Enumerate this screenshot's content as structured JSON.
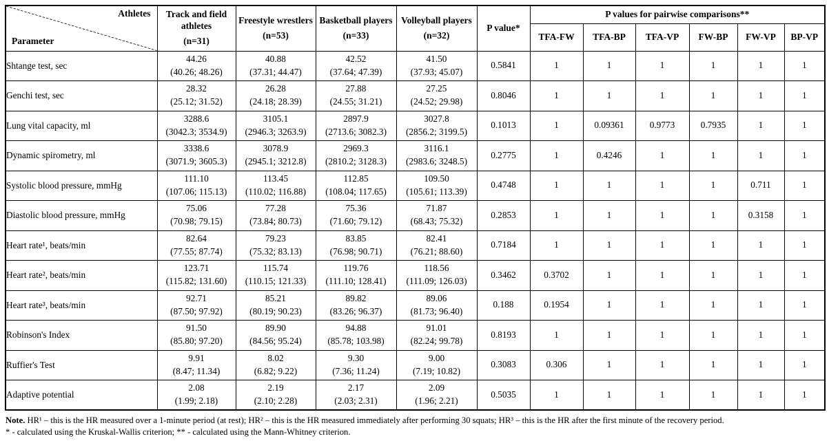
{
  "table": {
    "corner": {
      "top_label": "Athletes",
      "bottom_label": "Parameter"
    },
    "columns": [
      {
        "name": "Track and field athletes",
        "n": "(n=31)"
      },
      {
        "name": "Freestyle wrestlers",
        "n": "(n=53)"
      },
      {
        "name": "Basketball players",
        "n": "(n=33)"
      },
      {
        "name": "Volleyball players",
        "n": "(n=32)"
      }
    ],
    "p_value_header": "P value*",
    "pairwise_group_header": "P values for pairwise comparisons**",
    "pairwise_columns": [
      "TFA-FW",
      "TFA-BP",
      "TFA-VP",
      "FW-BP",
      "FW-VP",
      "BP-VP"
    ],
    "rows": [
      {
        "parameter": "Shtange test, sec",
        "cells": [
          {
            "mean": "44.26",
            "ci": "(40.26; 48.26)"
          },
          {
            "mean": "40.88",
            "ci": "(37.31; 44.47)"
          },
          {
            "mean": "42.52",
            "ci": "(37.64; 47.39)"
          },
          {
            "mean": "41.50",
            "ci": "(37.93; 45.07)"
          }
        ],
        "p": "0.5841",
        "pairwise": [
          "1",
          "1",
          "1",
          "1",
          "1",
          "1"
        ]
      },
      {
        "parameter": "Genchi test, sec",
        "cells": [
          {
            "mean": "28.32",
            "ci": "(25.12; 31.52)"
          },
          {
            "mean": "26.28",
            "ci": "(24.18; 28.39)"
          },
          {
            "mean": "27.88",
            "ci": "(24.55; 31.21)"
          },
          {
            "mean": "27.25",
            "ci": "(24.52; 29.98)"
          }
        ],
        "p": "0.8046",
        "pairwise": [
          "1",
          "1",
          "1",
          "1",
          "1",
          "1"
        ]
      },
      {
        "parameter": "Lung vital capacity, ml",
        "cells": [
          {
            "mean": "3288.6",
            "ci": "(3042.3; 3534.9)"
          },
          {
            "mean": "3105.1",
            "ci": "(2946.3; 3263.9)"
          },
          {
            "mean": "2897.9",
            "ci": "(2713.6; 3082.3)"
          },
          {
            "mean": "3027.8",
            "ci": "(2856.2; 3199.5)"
          }
        ],
        "p": "0.1013",
        "pairwise": [
          "1",
          "0.09361",
          "0.9773",
          "0.7935",
          "1",
          "1"
        ]
      },
      {
        "parameter": "Dynamic spirometry, ml",
        "cells": [
          {
            "mean": "3338.6",
            "ci": "(3071.9; 3605.3)"
          },
          {
            "mean": "3078.9",
            "ci": "(2945.1; 3212.8)"
          },
          {
            "mean": "2969.3",
            "ci": "(2810.2; 3128.3)"
          },
          {
            "mean": "3116.1",
            "ci": "(2983.6; 3248.5)"
          }
        ],
        "p": "0.2775",
        "pairwise": [
          "1",
          "0.4246",
          "1",
          "1",
          "1",
          "1"
        ]
      },
      {
        "parameter": "Systolic blood pressure, mmHg",
        "cells": [
          {
            "mean": "111.10",
            "ci": "(107.06; 115.13)"
          },
          {
            "mean": "113.45",
            "ci": "(110.02; 116.88)"
          },
          {
            "mean": "112.85",
            "ci": "(108.04; 117.65)"
          },
          {
            "mean": "109.50",
            "ci": "(105.61; 113.39)"
          }
        ],
        "p": "0.4748",
        "pairwise": [
          "1",
          "1",
          "1",
          "1",
          "0.711",
          "1"
        ]
      },
      {
        "parameter": "Diastolic blood pressure, mmHg",
        "cells": [
          {
            "mean": "75.06",
            "ci": "(70.98; 79.15)"
          },
          {
            "mean": "77.28",
            "ci": "(73.84; 80.73)"
          },
          {
            "mean": "75.36",
            "ci": "(71.60; 79.12)"
          },
          {
            "mean": "71.87",
            "ci": "(68.43; 75.32)"
          }
        ],
        "p": "0.2853",
        "pairwise": [
          "1",
          "1",
          "1",
          "1",
          "0.3158",
          "1"
        ]
      },
      {
        "parameter": "Heart rate¹, beats/min",
        "cells": [
          {
            "mean": "82.64",
            "ci": "(77.55; 87.74)"
          },
          {
            "mean": "79.23",
            "ci": "(75.32; 83.13)"
          },
          {
            "mean": "83.85",
            "ci": "(76.98; 90.71)"
          },
          {
            "mean": "82.41",
            "ci": "(76.21; 88.60)"
          }
        ],
        "p": "0.7184",
        "pairwise": [
          "1",
          "1",
          "1",
          "1",
          "1",
          "1"
        ]
      },
      {
        "parameter": "Heart rate², beats/min",
        "cells": [
          {
            "mean": "123.71",
            "ci": "(115.82; 131.60)"
          },
          {
            "mean": "115.74",
            "ci": "(110.15; 121.33)"
          },
          {
            "mean": "119.76",
            "ci": "(111.10; 128.41)"
          },
          {
            "mean": "118.56",
            "ci": "(111.09; 126.03)"
          }
        ],
        "p": "0.3462",
        "pairwise": [
          "0.3702",
          "1",
          "1",
          "1",
          "1",
          "1"
        ]
      },
      {
        "parameter": "Heart rate³, beats/min",
        "cells": [
          {
            "mean": "92.71",
            "ci": "(87.50; 97.92)"
          },
          {
            "mean": "85.21",
            "ci": "(80.19; 90.23)"
          },
          {
            "mean": "89.82",
            "ci": "(83.26; 96.37)"
          },
          {
            "mean": "89.06",
            "ci": "(81.73; 96.40)"
          }
        ],
        "p": "0.188",
        "pairwise": [
          "0.1954",
          "1",
          "1",
          "1",
          "1",
          "1"
        ]
      },
      {
        "parameter": "Robinson's Index",
        "cells": [
          {
            "mean": "91.50",
            "ci": "(85.80; 97.20)"
          },
          {
            "mean": "89.90",
            "ci": "(84.56; 95.24)"
          },
          {
            "mean": "94.88",
            "ci": "(85.78; 103.98)"
          },
          {
            "mean": "91.01",
            "ci": "(82.24; 99.78)"
          }
        ],
        "p": "0.8193",
        "pairwise": [
          "1",
          "1",
          "1",
          "1",
          "1",
          "1"
        ]
      },
      {
        "parameter": "Ruffier's Test",
        "cells": [
          {
            "mean": "9.91",
            "ci": "(8.47; 11.34)"
          },
          {
            "mean": "8.02",
            "ci": "(6.82; 9.22)"
          },
          {
            "mean": "9.30",
            "ci": "(7.36; 11.24)"
          },
          {
            "mean": "9.00",
            "ci": "(7.19; 10.82)"
          }
        ],
        "p": "0.3083",
        "pairwise": [
          "0.306",
          "1",
          "1",
          "1",
          "1",
          "1"
        ]
      },
      {
        "parameter": "Adaptive potential",
        "cells": [
          {
            "mean": "2.08",
            "ci": "(1.99; 2.18)"
          },
          {
            "mean": "2.19",
            "ci": "(2.10; 2.28)"
          },
          {
            "mean": "2.17",
            "ci": "(2.03; 2.31)"
          },
          {
            "mean": "2.09",
            "ci": "(1.96; 2.21)"
          }
        ],
        "p": "0.5035",
        "pairwise": [
          "1",
          "1",
          "1",
          "1",
          "1",
          "1"
        ]
      }
    ]
  },
  "notes": {
    "label": "Note.",
    "line1": " HR¹ – this is the HR measured over a 1-minute period (at rest); HR² – this is the HR measured immediately after performing 30 squats; HR³ – this is the HR after the first minute of the recovery period.",
    "line2": "* - calculated using the Kruskal-Wallis criterion; ** - calculated using the Mann-Whitney criterion."
  },
  "colors": {
    "text": "#000000",
    "border": "#000000",
    "background": "#ffffff"
  }
}
